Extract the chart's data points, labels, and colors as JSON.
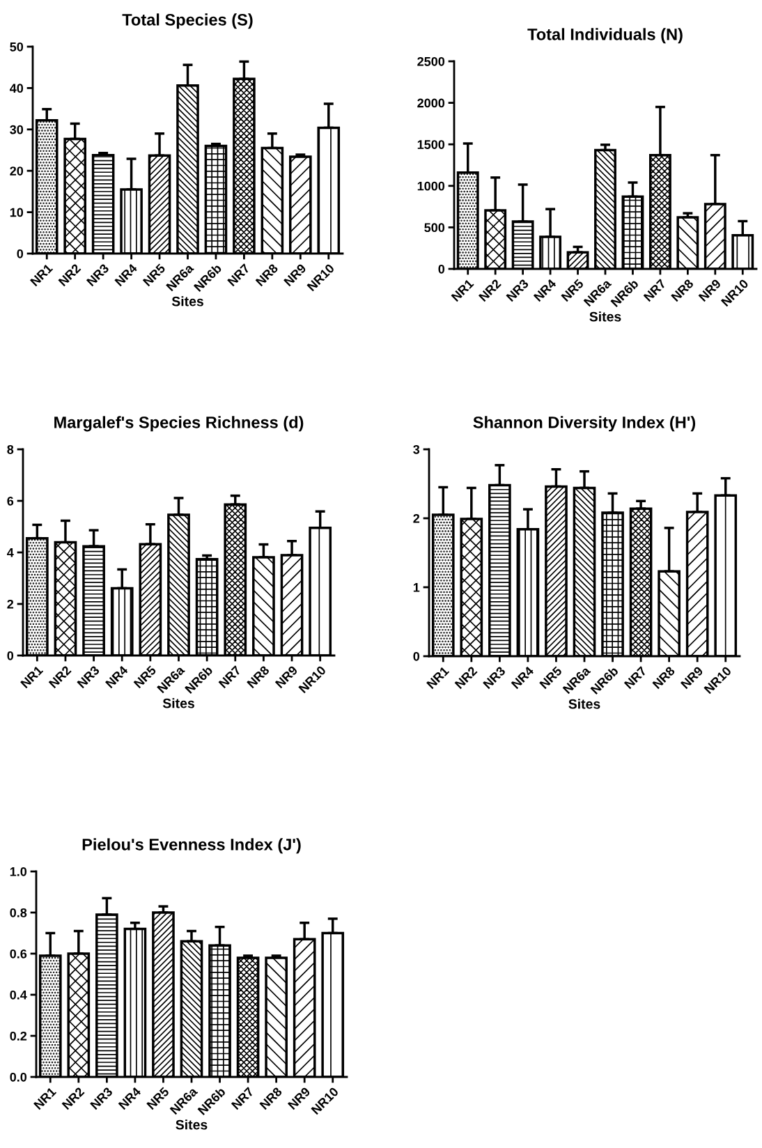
{
  "chart_data": [
    {
      "type": "bar",
      "title": "Total Species (S)",
      "xlabel": "Sites",
      "categories": [
        "NR1",
        "NR2",
        "NR3",
        "NR4",
        "NR5",
        "NR6a",
        "NR6b",
        "NR7",
        "NR8",
        "NR9",
        "NR10"
      ],
      "color": "#000000",
      "values": [
        32.2,
        27.7,
        23.8,
        15.5,
        23.7,
        40.6,
        26.0,
        42.2,
        25.5,
        23.4,
        30.4
      ],
      "errors": [
        [
          32.2,
          34.9
        ],
        [
          27.7,
          31.4
        ],
        [
          23.8,
          24.3
        ],
        [
          15.5,
          22.9
        ],
        [
          23.7,
          29.0
        ],
        [
          40.6,
          45.6
        ],
        [
          26.0,
          26.5
        ],
        [
          42.2,
          46.4
        ],
        [
          25.5,
          29.0
        ],
        [
          23.4,
          23.9
        ],
        [
          30.4,
          36.2
        ]
      ],
      "ylim": [
        0,
        50
      ],
      "yticks": [
        0,
        10,
        20,
        30,
        40,
        50
      ]
    },
    {
      "type": "bar",
      "title": "Total Individuals (N)",
      "xlabel": "Sites",
      "categories": [
        "NR1",
        "NR2",
        "NR3",
        "NR4",
        "NR5",
        "NR6a",
        "NR6b",
        "NR7",
        "NR8",
        "NR9",
        "NR10"
      ],
      "color": "#000000",
      "values": [
        1160,
        705,
        570,
        385,
        200,
        1430,
        870,
        1370,
        620,
        780,
        405
      ],
      "errors": [
        [
          1160,
          1510
        ],
        [
          705,
          1100
        ],
        [
          570,
          1015
        ],
        [
          385,
          720
        ],
        [
          200,
          265
        ],
        [
          1430,
          1495
        ],
        [
          870,
          1040
        ],
        [
          1370,
          1950
        ],
        [
          620,
          670
        ],
        [
          780,
          1370
        ],
        [
          405,
          575
        ]
      ],
      "ylim": [
        0,
        2500
      ],
      "yticks": [
        0,
        500,
        1000,
        1500,
        2000,
        2500
      ]
    },
    {
      "type": "bar",
      "title": "Margalef's Species Richness (d)",
      "xlabel": "Sites",
      "categories": [
        "NR1",
        "NR2",
        "NR3",
        "NR4",
        "NR5",
        "NR6a",
        "NR6b",
        "NR7",
        "NR8",
        "NR9",
        "NR10"
      ],
      "color": "#000000",
      "values": [
        4.55,
        4.39,
        4.24,
        2.61,
        4.32,
        5.46,
        3.74,
        5.86,
        3.81,
        3.89,
        4.95
      ],
      "errors": [
        [
          4.55,
          5.07
        ],
        [
          4.39,
          5.23
        ],
        [
          4.24,
          4.86
        ],
        [
          2.61,
          3.34
        ],
        [
          4.32,
          5.09
        ],
        [
          5.46,
          6.11
        ],
        [
          3.74,
          3.88
        ],
        [
          5.86,
          6.2
        ],
        [
          3.81,
          4.31
        ],
        [
          3.89,
          4.44
        ],
        [
          4.95,
          5.59
        ]
      ],
      "ylim": [
        0,
        8
      ],
      "yticks": [
        0,
        2,
        4,
        6,
        8
      ]
    },
    {
      "type": "bar",
      "title": "Shannon Diversity Index (H')",
      "xlabel": "Sites",
      "categories": [
        "NR1",
        "NR2",
        "NR3",
        "NR4",
        "NR5",
        "NR6a",
        "NR6b",
        "NR7",
        "NR8",
        "NR9",
        "NR10"
      ],
      "color": "#000000",
      "values": [
        2.05,
        1.99,
        2.48,
        1.84,
        2.46,
        2.44,
        2.08,
        2.14,
        1.23,
        2.09,
        2.33
      ],
      "errors": [
        [
          2.05,
          2.45
        ],
        [
          1.99,
          2.44
        ],
        [
          2.48,
          2.77
        ],
        [
          1.84,
          2.13
        ],
        [
          2.46,
          2.71
        ],
        [
          2.44,
          2.68
        ],
        [
          2.08,
          2.36
        ],
        [
          2.14,
          2.25
        ],
        [
          1.23,
          1.86
        ],
        [
          2.09,
          2.36
        ],
        [
          2.33,
          2.58
        ]
      ],
      "ylim": [
        0,
        3
      ],
      "yticks": [
        0,
        1,
        2,
        3
      ]
    },
    {
      "type": "bar",
      "title": "Pielou's Evenness Index (J')",
      "xlabel": "Sites",
      "categories": [
        "NR1",
        "NR2",
        "NR3",
        "NR4",
        "NR5",
        "NR6a",
        "NR6b",
        "NR7",
        "NR8",
        "NR9",
        "NR10"
      ],
      "color": "#000000",
      "values": [
        0.59,
        0.6,
        0.79,
        0.72,
        0.8,
        0.66,
        0.64,
        0.58,
        0.58,
        0.67,
        0.7
      ],
      "errors": [
        [
          0.59,
          0.7
        ],
        [
          0.6,
          0.71
        ],
        [
          0.79,
          0.87
        ],
        [
          0.72,
          0.75
        ],
        [
          0.8,
          0.83
        ],
        [
          0.66,
          0.71
        ],
        [
          0.64,
          0.73
        ],
        [
          0.58,
          0.59
        ],
        [
          0.58,
          0.59
        ],
        [
          0.67,
          0.75
        ],
        [
          0.7,
          0.77
        ]
      ],
      "ylim": [
        0,
        1.0
      ],
      "yticks": [
        {
          "value": 0,
          "label": "0.0"
        },
        {
          "value": 0.2,
          "label": "0.2"
        },
        {
          "value": 0.4,
          "label": "0.4"
        },
        {
          "value": 0.6,
          "label": "0.6"
        },
        {
          "value": 0.8,
          "label": "0.8"
        },
        {
          "value": 1.0,
          "label": "1.0"
        }
      ]
    }
  ]
}
